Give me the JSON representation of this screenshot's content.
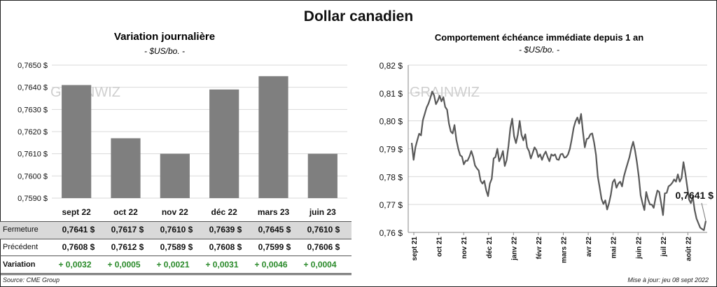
{
  "title": "Dollar canadien",
  "left_chart": {
    "title": "Variation  journalière",
    "subtitle": "- $US/bo. -",
    "watermark": "GRAINWIZ"
  },
  "right_chart": {
    "title": "Comportement échéance immédiate depuis 1 an",
    "subtitle": "- $US/bo. -",
    "watermark": "GRAINWIZ",
    "last_value_label": "0,7641 $"
  },
  "table": {
    "rows": [
      {
        "label": "Fermeture",
        "values": [
          "0,7641  $",
          "0,7617  $",
          "0,7610  $",
          "0,7639  $",
          "0,7645  $",
          "0,7610  $"
        ]
      },
      {
        "label": "Précédent",
        "values": [
          "0,7608  $",
          "0,7612  $",
          "0,7589  $",
          "0,7608  $",
          "0,7599  $",
          "0,7606  $"
        ]
      },
      {
        "label": "Variation",
        "values": [
          "+ 0,0032",
          "+ 0,0005",
          "+ 0,0021",
          "+ 0,0031",
          "+ 0,0046",
          "+ 0,0004"
        ]
      }
    ]
  },
  "footer": {
    "source": "Source: CME Group",
    "updated": "Mise à jour: jeu 08 sept 2022"
  },
  "colors": {
    "bar": "#7f7f7f",
    "line": "#595959",
    "variation_positive": "#2a8a2a",
    "fermeture_bg": "#d9d9d9"
  },
  "chart_data": [
    {
      "type": "bar",
      "categories": [
        "sept 22",
        "oct 22",
        "nov 22",
        "déc 22",
        "mars 23",
        "juin 23"
      ],
      "values": [
        0.7641,
        0.7617,
        0.761,
        0.7639,
        0.7645,
        0.761
      ],
      "ylim": [
        0.759,
        0.765
      ],
      "yticks": [
        "0,7590 $",
        "0,7600 $",
        "0,7610 $",
        "0,7620 $",
        "0,7630 $",
        "0,7640 $",
        "0,7650 $"
      ],
      "grid": true
    },
    {
      "type": "line",
      "x_labels": [
        "sept 21",
        "oct 21",
        "nov 21",
        "déc 21",
        "janv 22",
        "févr 22",
        "mars 22",
        "avr 22",
        "mai 22",
        "juin 22",
        "juil 22",
        "août 22"
      ],
      "ylim": [
        0.76,
        0.82
      ],
      "yticks": [
        "0,76 $",
        "0,77 $",
        "0,78 $",
        "0,79 $",
        "0,80 $",
        "0,81 $",
        "0,82 $"
      ],
      "grid": true,
      "values": [
        0.7921,
        0.786,
        0.7905,
        0.7931,
        0.7954,
        0.7948,
        0.8002,
        0.8025,
        0.8048,
        0.8062,
        0.8082,
        0.8105,
        0.8092,
        0.806,
        0.8072,
        0.809,
        0.807,
        0.8085,
        0.805,
        0.804,
        0.799,
        0.7962,
        0.7955,
        0.7985,
        0.7932,
        0.79,
        0.7877,
        0.7872,
        0.7844,
        0.7857,
        0.7857,
        0.7872,
        0.7892,
        0.7872,
        0.784,
        0.783,
        0.7822,
        0.7785,
        0.7775,
        0.7785,
        0.7752,
        0.773,
        0.7775,
        0.7792,
        0.7865,
        0.787,
        0.79,
        0.7855,
        0.787,
        0.7892,
        0.7838,
        0.786,
        0.791,
        0.7975,
        0.8008,
        0.7945,
        0.792,
        0.795,
        0.8,
        0.795,
        0.793,
        0.7952,
        0.7905,
        0.7892,
        0.7865,
        0.7885,
        0.7905,
        0.7895,
        0.787,
        0.788,
        0.786,
        0.7878,
        0.789,
        0.787,
        0.7855,
        0.788,
        0.7875,
        0.788,
        0.7862,
        0.786,
        0.788,
        0.7882,
        0.7868,
        0.787,
        0.788,
        0.79,
        0.7935,
        0.7975,
        0.7998,
        0.8012,
        0.799,
        0.8025,
        0.796,
        0.7905,
        0.7935,
        0.7938,
        0.7952,
        0.7955,
        0.7922,
        0.7878,
        0.78,
        0.776,
        0.772,
        0.7702,
        0.7715,
        0.7682,
        0.7705,
        0.7735,
        0.778,
        0.779,
        0.776,
        0.7775,
        0.7782,
        0.7765,
        0.78,
        0.7825,
        0.7848,
        0.787,
        0.7902,
        0.7925,
        0.7893,
        0.7852,
        0.78,
        0.7732,
        0.7705,
        0.768,
        0.7745,
        0.7718,
        0.77,
        0.77,
        0.7688,
        0.7722,
        0.775,
        0.7745,
        0.7705,
        0.7662,
        0.774,
        0.7742,
        0.7765,
        0.777,
        0.7778,
        0.779,
        0.7782,
        0.7808,
        0.7782,
        0.7795,
        0.7852,
        0.7812,
        0.7765,
        0.7718,
        0.7705,
        0.7728,
        0.768,
        0.765,
        0.7633,
        0.7617,
        0.7612,
        0.7608,
        0.7641
      ],
      "last_value": 0.7641
    }
  ]
}
